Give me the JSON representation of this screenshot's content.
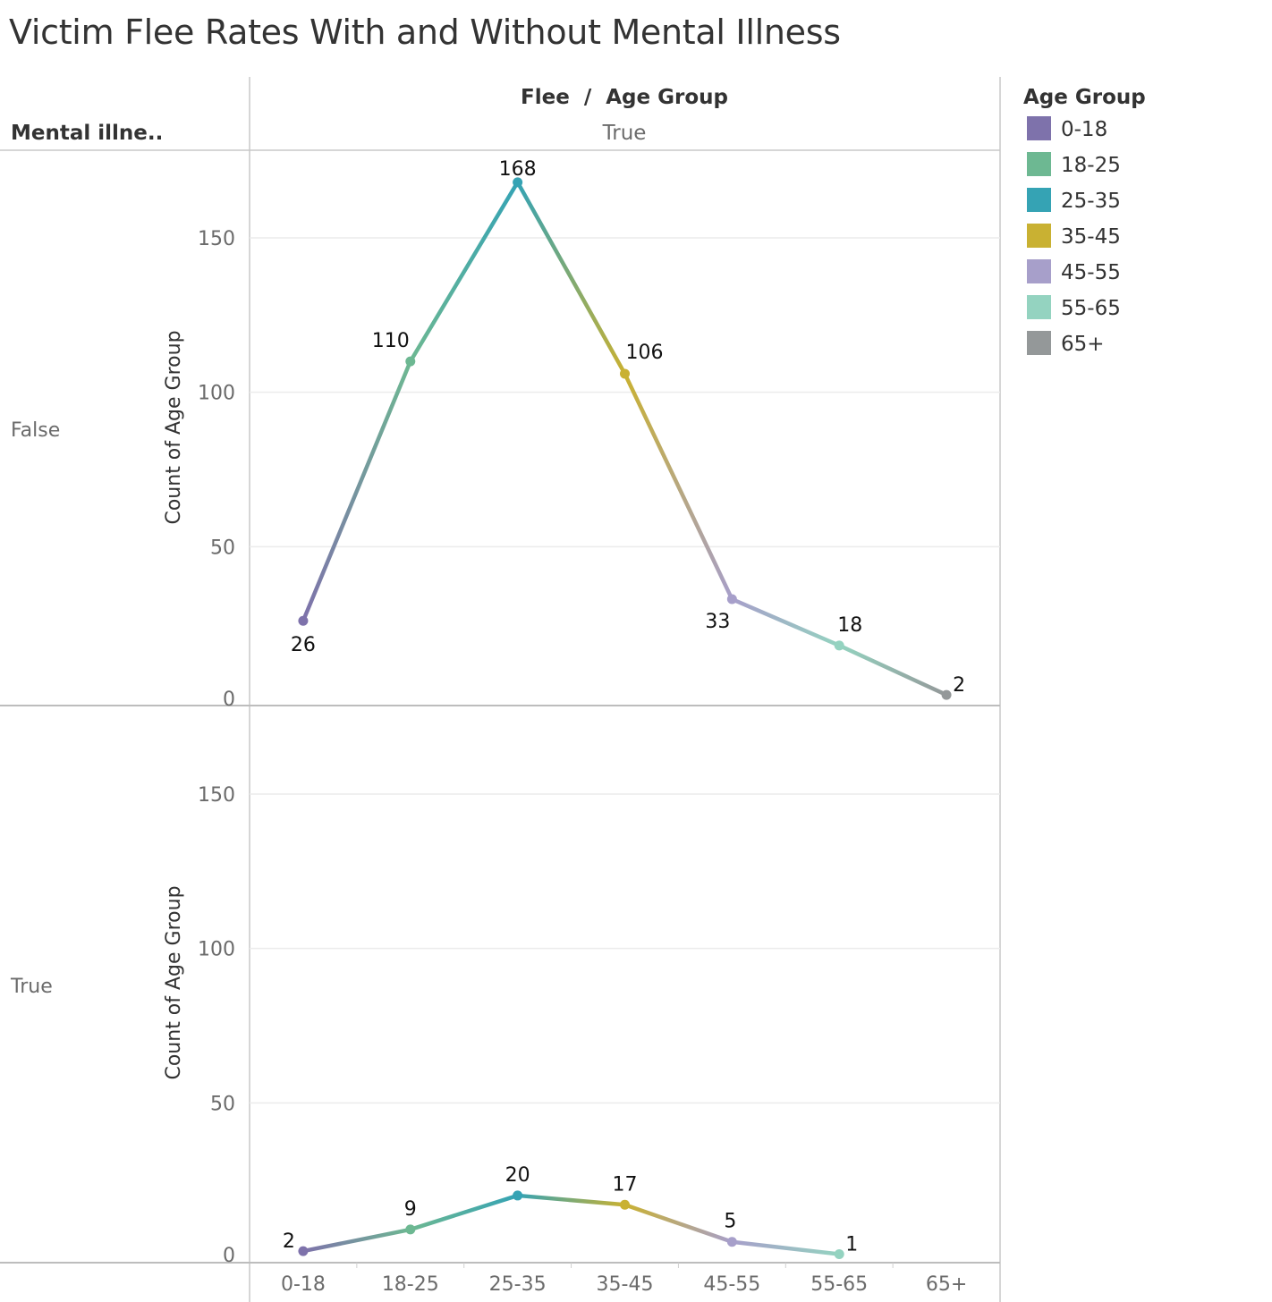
{
  "title": "Victim Flee Rates With and Without Mental Illness",
  "chart_data": {
    "type": "line",
    "title": "Victim Flee Rates With and Without Mental Illness",
    "column_header": "Flee  /  Age Group",
    "column_value": "True",
    "row_header": "Mental illne..",
    "ylabel": "Count of Age Group",
    "xlabel": "",
    "ylim": [
      0,
      175
    ],
    "yticks": [
      0,
      50,
      100,
      150
    ],
    "grid": true,
    "categories": [
      "0-18",
      "18-25",
      "25-35",
      "35-45",
      "45-55",
      "55-65",
      "65+"
    ],
    "panels": [
      {
        "row_label": "False",
        "values": [
          26,
          110,
          168,
          106,
          33,
          18,
          2
        ]
      },
      {
        "row_label": "True",
        "values": [
          2,
          9,
          20,
          17,
          5,
          1,
          null
        ]
      }
    ],
    "legend": {
      "title": "Age Group",
      "placement": "right",
      "items": [
        {
          "label": "0-18",
          "color": "#7e72ab"
        },
        {
          "label": "18-25",
          "color": "#6db892"
        },
        {
          "label": "25-35",
          "color": "#35a3b4"
        },
        {
          "label": "35-45",
          "color": "#c9b132"
        },
        {
          "label": "45-55",
          "color": "#a79fca"
        },
        {
          "label": "55-65",
          "color": "#94d3c0"
        },
        {
          "label": "65+",
          "color": "#949899"
        }
      ]
    }
  }
}
